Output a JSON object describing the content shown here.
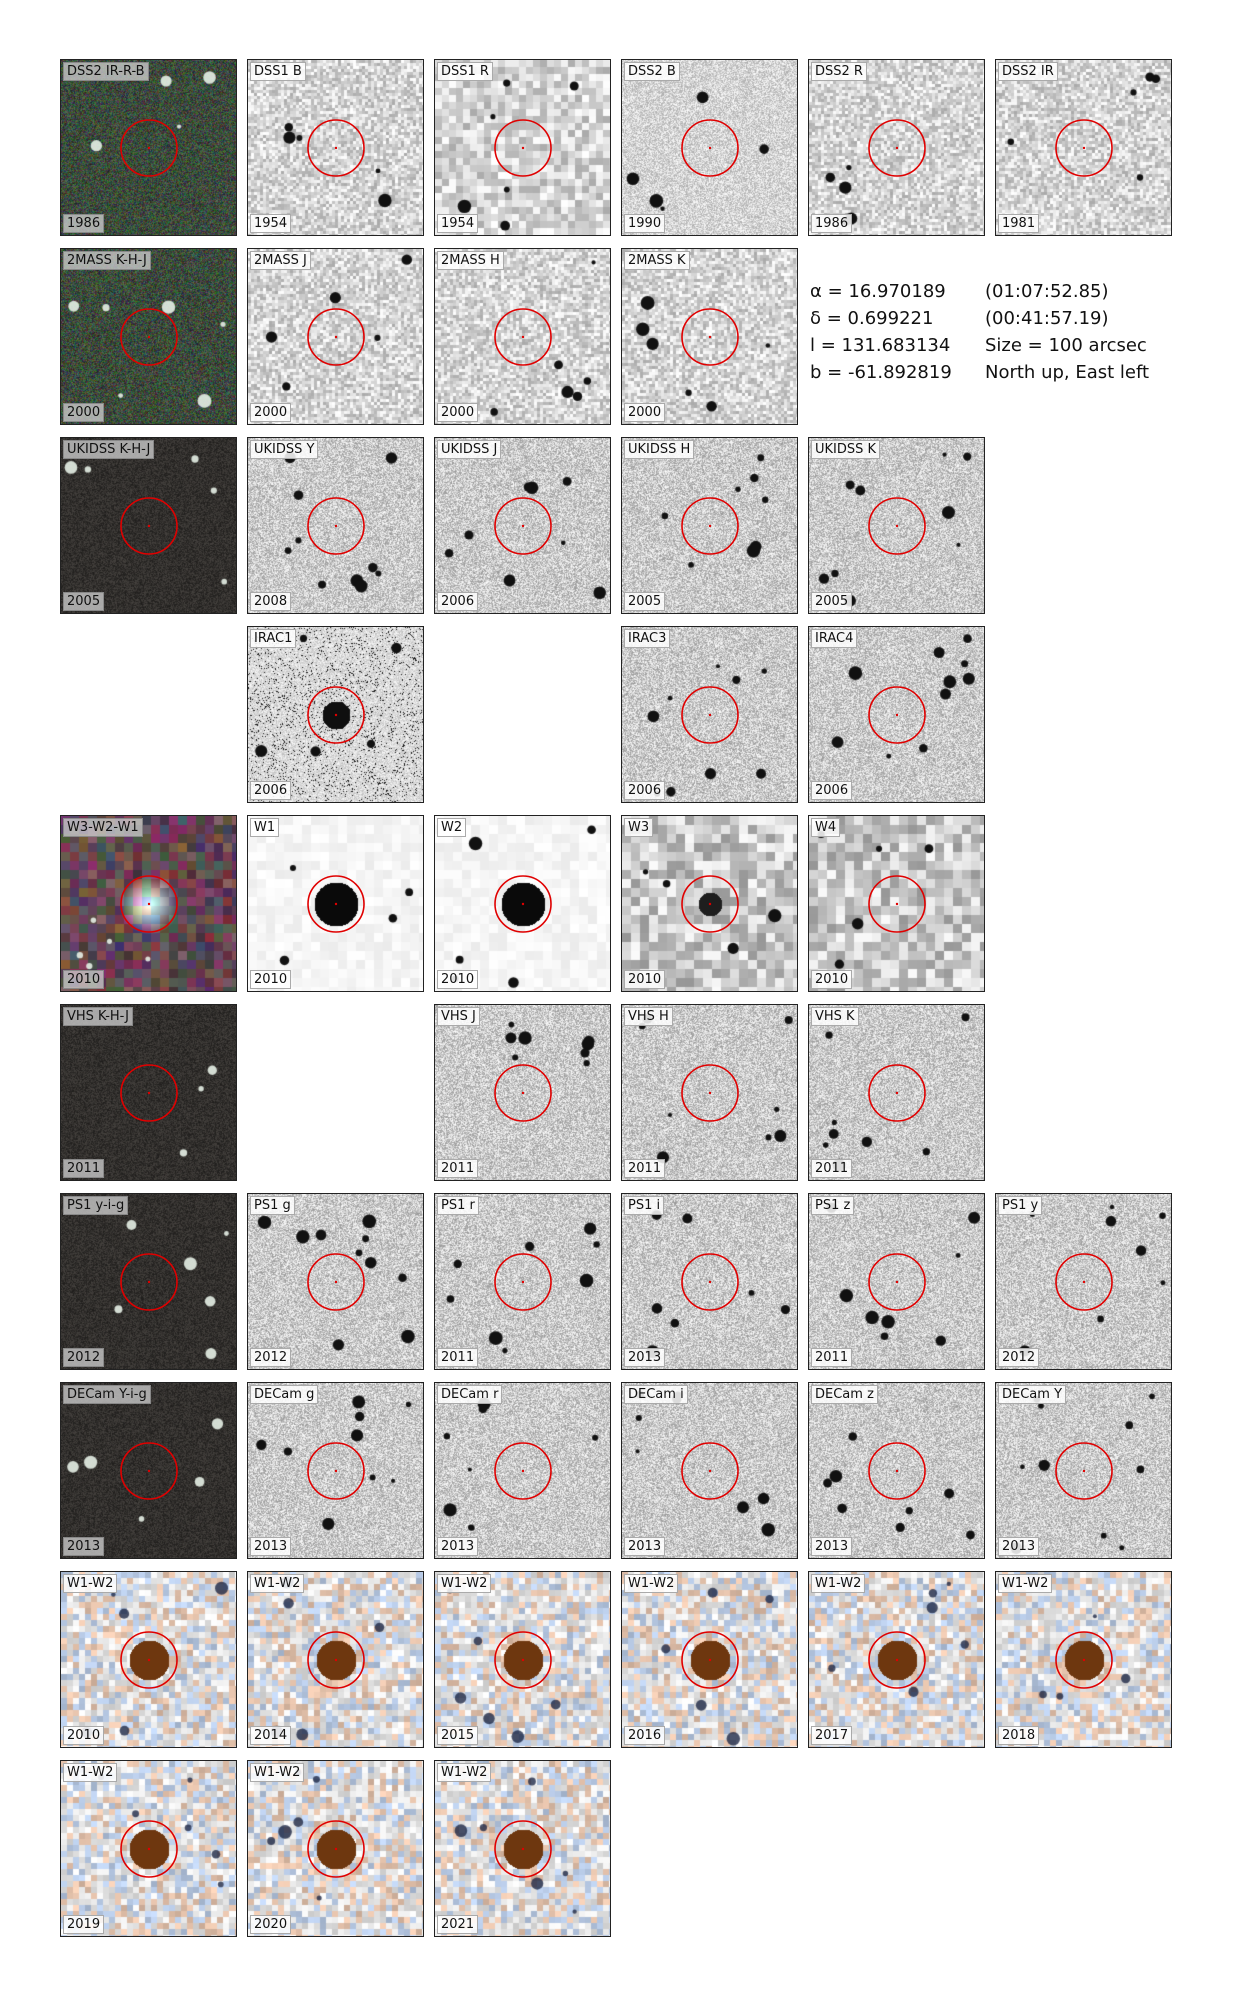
{
  "info": {
    "ra": "α = 16.970189",
    "ra_sex": "(01:07:52.85)",
    "dec": "δ = 0.699221",
    "dec_sex": "(00:41:57.19)",
    "l": "l = 131.683134",
    "size": "Size = 100 arcsec",
    "b": "b = -61.892819",
    "orient": "North up, East left"
  },
  "rows": [
    {
      "panels": [
        {
          "label": "DSS2 IR-R-B",
          "year": "1986",
          "style": "rgbnoise"
        },
        {
          "label": "DSS1 B",
          "year": "1954",
          "style": "smooth"
        },
        {
          "label": "DSS1 R",
          "year": "1954",
          "style": "blocky"
        },
        {
          "label": "DSS2 B",
          "year": "1990",
          "style": "fine"
        },
        {
          "label": "DSS2 R",
          "year": "1986",
          "style": "smooth"
        },
        {
          "label": "DSS2 IR",
          "year": "1981",
          "style": "smooth"
        }
      ]
    },
    {
      "panels": [
        {
          "label": "2MASS K-H-J",
          "year": "2000",
          "style": "rgbnoise2"
        },
        {
          "label": "2MASS J",
          "year": "2000",
          "style": "smooth2"
        },
        {
          "label": "2MASS H",
          "year": "2000",
          "style": "smooth2"
        },
        {
          "label": "2MASS K",
          "year": "2000",
          "style": "smooth2"
        }
      ]
    },
    {
      "panels": [
        {
          "label": "UKIDSS K-H-J",
          "year": "2005",
          "style": "rgbdark"
        },
        {
          "label": "UKIDSS Y",
          "year": "2008",
          "style": "grainy"
        },
        {
          "label": "UKIDSS J",
          "year": "2006",
          "style": "grainy"
        },
        {
          "label": "UKIDSS H",
          "year": "2005",
          "style": "grainy"
        },
        {
          "label": "UKIDSS K",
          "year": "2005",
          "style": "grainy"
        }
      ]
    },
    {
      "panels": [
        {
          "label": "IRAC1",
          "year": "2006",
          "style": "irac"
        },
        {
          "label": "IRAC3",
          "year": "2006",
          "style": "grainy"
        },
        {
          "label": "IRAC4",
          "year": "2006",
          "style": "grainy"
        }
      ]
    },
    {
      "panels": [
        {
          "label": "W3-W2-W1",
          "year": "2010",
          "style": "wiseRGB"
        },
        {
          "label": "W1",
          "year": "2010",
          "style": "wise"
        },
        {
          "label": "W2",
          "year": "2010",
          "style": "wise"
        },
        {
          "label": "W3",
          "year": "2010",
          "style": "wise3"
        },
        {
          "label": "W4",
          "year": "2010",
          "style": "wise4"
        }
      ]
    },
    {
      "panels": [
        {
          "label": "VHS K-H-J",
          "year": "2011",
          "style": "rgbdark"
        },
        {
          "label": "VHS J",
          "year": "2011",
          "style": "grainy"
        },
        {
          "label": "VHS H",
          "year": "2011",
          "style": "grainy"
        },
        {
          "label": "VHS K",
          "year": "2011",
          "style": "grainy"
        }
      ]
    },
    {
      "panels": [
        {
          "label": "PS1 y-i-g",
          "year": "2012",
          "style": "rgbdark"
        },
        {
          "label": "PS1 g",
          "year": "2012",
          "style": "grainy"
        },
        {
          "label": "PS1 r",
          "year": "2011",
          "style": "grainy"
        },
        {
          "label": "PS1 i",
          "year": "2013",
          "style": "grainy"
        },
        {
          "label": "PS1 z",
          "year": "2011",
          "style": "grainy"
        },
        {
          "label": "PS1 y",
          "year": "2012",
          "style": "grainy"
        }
      ]
    },
    {
      "panels": [
        {
          "label": "DECam Y-i-g",
          "year": "2013",
          "style": "rgbdark"
        },
        {
          "label": "DECam g",
          "year": "2013",
          "style": "grainy"
        },
        {
          "label": "DECam r",
          "year": "2013",
          "style": "grainy"
        },
        {
          "label": "DECam i",
          "year": "2013",
          "style": "grainy"
        },
        {
          "label": "DECam z",
          "year": "2013",
          "style": "grainy"
        },
        {
          "label": "DECam Y",
          "year": "2013",
          "style": "grainy"
        }
      ]
    },
    {
      "panels": [
        {
          "label": "W1-W2",
          "year": "2010",
          "style": "unwise"
        },
        {
          "label": "W1-W2",
          "year": "2014",
          "style": "unwise"
        },
        {
          "label": "W1-W2",
          "year": "2015",
          "style": "unwise"
        },
        {
          "label": "W1-W2",
          "year": "2016",
          "style": "unwise"
        },
        {
          "label": "W1-W2",
          "year": "2017",
          "style": "unwise"
        },
        {
          "label": "W1-W2",
          "year": "2018",
          "style": "unwise"
        }
      ]
    },
    {
      "panels": [
        {
          "label": "W1-W2",
          "year": "2019",
          "style": "unwise"
        },
        {
          "label": "W1-W2",
          "year": "2020",
          "style": "unwise"
        },
        {
          "label": "W1-W2",
          "year": "2021",
          "style": "unwise"
        }
      ]
    }
  ]
}
